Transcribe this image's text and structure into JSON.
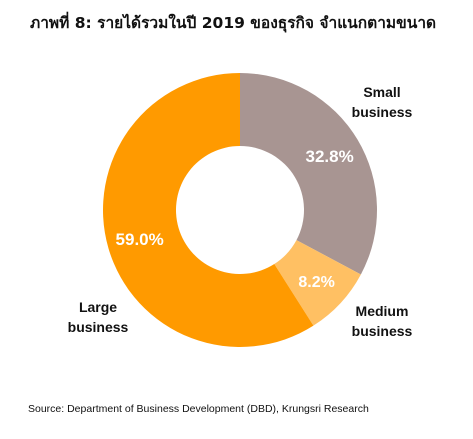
{
  "title": "ภาพที่ 8: รายได้รวมในปี 2019 ของธุรกิจ จำแนกตามขนาด",
  "source": "Source: Department of Business Development (DBD), Krungsri Research",
  "chart_data": {
    "type": "pie",
    "variant": "donut",
    "title": "ภาพที่ 8: รายได้รวมในปี 2019 ของธุรกิจ จำแนกตามขนาด",
    "unit": "%",
    "slices": [
      {
        "label": [
          "Small",
          "business"
        ],
        "value": 32.8,
        "display": "32.8%",
        "color": "#a89592"
      },
      {
        "label": [
          "Medium",
          "business"
        ],
        "value": 8.2,
        "display": "8.2%",
        "color": "#ffc063"
      },
      {
        "label": [
          "Large",
          "business"
        ],
        "value": 59.0,
        "display": "59.0%",
        "color": "#ff9a00"
      }
    ],
    "start": "top",
    "direction": "clockwise",
    "legend": "none"
  }
}
